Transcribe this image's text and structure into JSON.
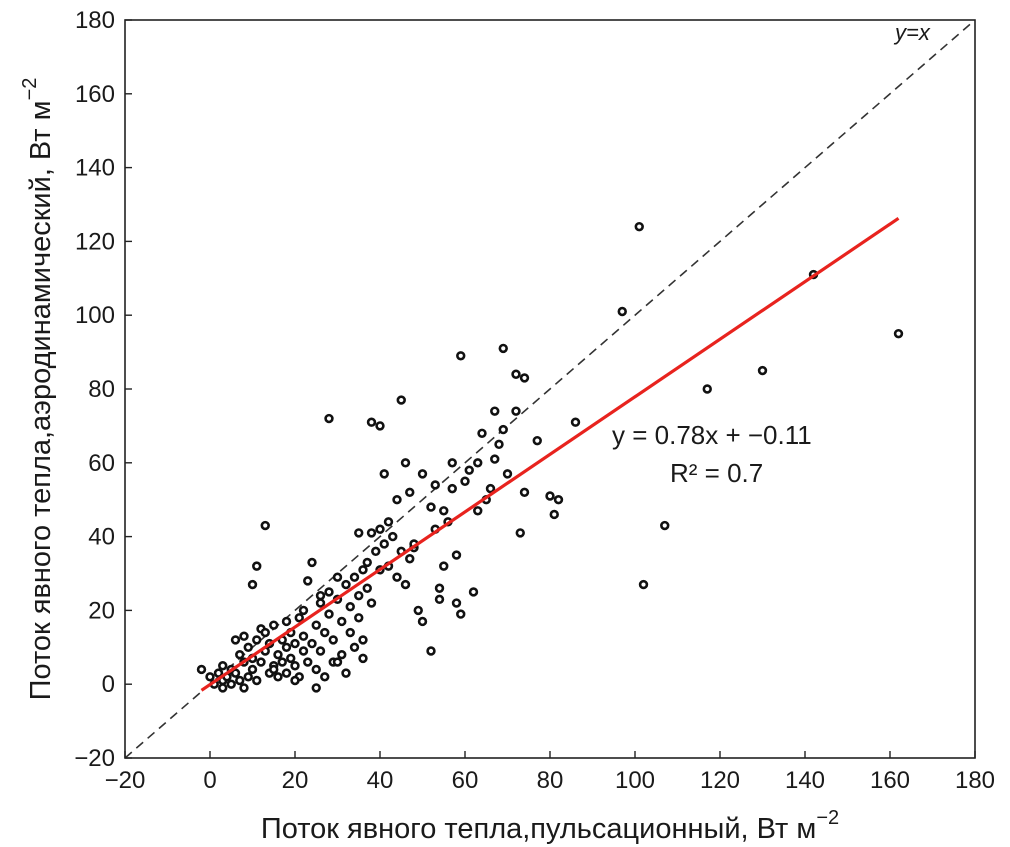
{
  "chart_data": {
    "type": "scatter",
    "xlabel": "Поток явного тепла,пульсационный, Вт м",
    "xlabel_sup": "−2",
    "ylabel": "Поток явного тепла,аэродинамический, Вт м",
    "ylabel_sup": "−2",
    "xlim": [
      -20,
      180
    ],
    "ylim": [
      -20,
      180
    ],
    "xticks": [
      -20,
      0,
      20,
      40,
      60,
      80,
      100,
      120,
      140,
      160,
      180
    ],
    "yticks": [
      -20,
      0,
      20,
      40,
      60,
      80,
      100,
      120,
      140,
      160,
      180
    ],
    "xtick_labels": [
      "−20",
      "0",
      "20",
      "40",
      "60",
      "80",
      "100",
      "120",
      "140",
      "160",
      "180"
    ],
    "ytick_labels": [
      "−20",
      "0",
      "20",
      "40",
      "60",
      "80",
      "100",
      "120",
      "140",
      "160",
      "180"
    ],
    "grid": false,
    "colors": {
      "points": "#111111",
      "fit_line": "#e8231e",
      "identity_line": "#333333"
    },
    "identity_line": {
      "label": "y=x",
      "from": [
        -20,
        -20
      ],
      "to": [
        180,
        180
      ]
    },
    "fit": {
      "slope": 0.78,
      "intercept": -0.11,
      "x_range": [
        -2,
        162
      ],
      "equation_text": "y = 0.78x + −0.11",
      "r2_text": "R² = 0.7"
    },
    "points": [
      [
        -2,
        4
      ],
      [
        0,
        2
      ],
      [
        1,
        0
      ],
      [
        2,
        3
      ],
      [
        3,
        5
      ],
      [
        3,
        1
      ],
      [
        4,
        2
      ],
      [
        5,
        0
      ],
      [
        5,
        4
      ],
      [
        6,
        3
      ],
      [
        6,
        12
      ],
      [
        7,
        8
      ],
      [
        7,
        1
      ],
      [
        8,
        6
      ],
      [
        8,
        13
      ],
      [
        9,
        2
      ],
      [
        9,
        10
      ],
      [
        10,
        4
      ],
      [
        10,
        7
      ],
      [
        11,
        12
      ],
      [
        11,
        1
      ],
      [
        12,
        15
      ],
      [
        12,
        6
      ],
      [
        13,
        9
      ],
      [
        13,
        14
      ],
      [
        14,
        3
      ],
      [
        14,
        11
      ],
      [
        15,
        5
      ],
      [
        15,
        16
      ],
      [
        16,
        8
      ],
      [
        16,
        2
      ],
      [
        17,
        12
      ],
      [
        17,
        6
      ],
      [
        18,
        10
      ],
      [
        18,
        3
      ],
      [
        19,
        7
      ],
      [
        19,
        14
      ],
      [
        20,
        5
      ],
      [
        20,
        11
      ],
      [
        21,
        18
      ],
      [
        21,
        2
      ],
      [
        22,
        9
      ],
      [
        22,
        13
      ],
      [
        23,
        6
      ],
      [
        23,
        28
      ],
      [
        24,
        33
      ],
      [
        24,
        11
      ],
      [
        25,
        4
      ],
      [
        25,
        16
      ],
      [
        26,
        22
      ],
      [
        26,
        9
      ],
      [
        27,
        14
      ],
      [
        27,
        2
      ],
      [
        28,
        19
      ],
      [
        28,
        25
      ],
      [
        29,
        12
      ],
      [
        29,
        6
      ],
      [
        30,
        23
      ],
      [
        30,
        29
      ],
      [
        31,
        17
      ],
      [
        31,
        8
      ],
      [
        32,
        27
      ],
      [
        32,
        3
      ],
      [
        33,
        21
      ],
      [
        33,
        14
      ],
      [
        34,
        29
      ],
      [
        34,
        10
      ],
      [
        35,
        24
      ],
      [
        35,
        18
      ],
      [
        36,
        31
      ],
      [
        36,
        7
      ],
      [
        37,
        26
      ],
      [
        37,
        33
      ],
      [
        38,
        22
      ],
      [
        38,
        41
      ],
      [
        39,
        36
      ],
      [
        40,
        31
      ],
      [
        40,
        42
      ],
      [
        41,
        38
      ],
      [
        42,
        32
      ],
      [
        43,
        40
      ],
      [
        44,
        29
      ],
      [
        45,
        36
      ],
      [
        46,
        27
      ],
      [
        47,
        34
      ],
      [
        48,
        37
      ],
      [
        49,
        20
      ],
      [
        50,
        17
      ],
      [
        52,
        48
      ],
      [
        52,
        9
      ],
      [
        53,
        42
      ],
      [
        54,
        26
      ],
      [
        54,
        23
      ],
      [
        55,
        32
      ],
      [
        56,
        44
      ],
      [
        57,
        53
      ],
      [
        58,
        35
      ],
      [
        58,
        22
      ],
      [
        59,
        19
      ],
      [
        60,
        55
      ],
      [
        61,
        58
      ],
      [
        62,
        25
      ],
      [
        63,
        47
      ],
      [
        64,
        68
      ],
      [
        65,
        50
      ],
      [
        66,
        53
      ],
      [
        67,
        61
      ],
      [
        68,
        65
      ],
      [
        69,
        69
      ],
      [
        70,
        57
      ],
      [
        72,
        74
      ],
      [
        73,
        41
      ],
      [
        74,
        52
      ],
      [
        77,
        66
      ],
      [
        80,
        51
      ],
      [
        81,
        46
      ],
      [
        82,
        50
      ],
      [
        86,
        71
      ],
      [
        13,
        43
      ],
      [
        10,
        27
      ],
      [
        11,
        32
      ],
      [
        28,
        72
      ],
      [
        38,
        71
      ],
      [
        40,
        70
      ],
      [
        45,
        77
      ],
      [
        41,
        57
      ],
      [
        46,
        60
      ],
      [
        59,
        89
      ],
      [
        69,
        91
      ],
      [
        72,
        84
      ],
      [
        74,
        83
      ],
      [
        67,
        74
      ],
      [
        63,
        60
      ],
      [
        50,
        57
      ],
      [
        53,
        54
      ],
      [
        57,
        60
      ],
      [
        44,
        50
      ],
      [
        47,
        52
      ],
      [
        48,
        38
      ],
      [
        35,
        41
      ],
      [
        97,
        101
      ],
      [
        101,
        124
      ],
      [
        102,
        27
      ],
      [
        107,
        43
      ],
      [
        117,
        80
      ],
      [
        130,
        85
      ],
      [
        142,
        111
      ],
      [
        162,
        95
      ],
      [
        42,
        44
      ],
      [
        55,
        47
      ],
      [
        36,
        12
      ],
      [
        30,
        6
      ],
      [
        25,
        -1
      ],
      [
        20,
        1
      ],
      [
        15,
        4
      ],
      [
        8,
        -1
      ],
      [
        3,
        -1
      ],
      [
        18,
        17
      ],
      [
        22,
        20
      ],
      [
        26,
        24
      ]
    ]
  }
}
